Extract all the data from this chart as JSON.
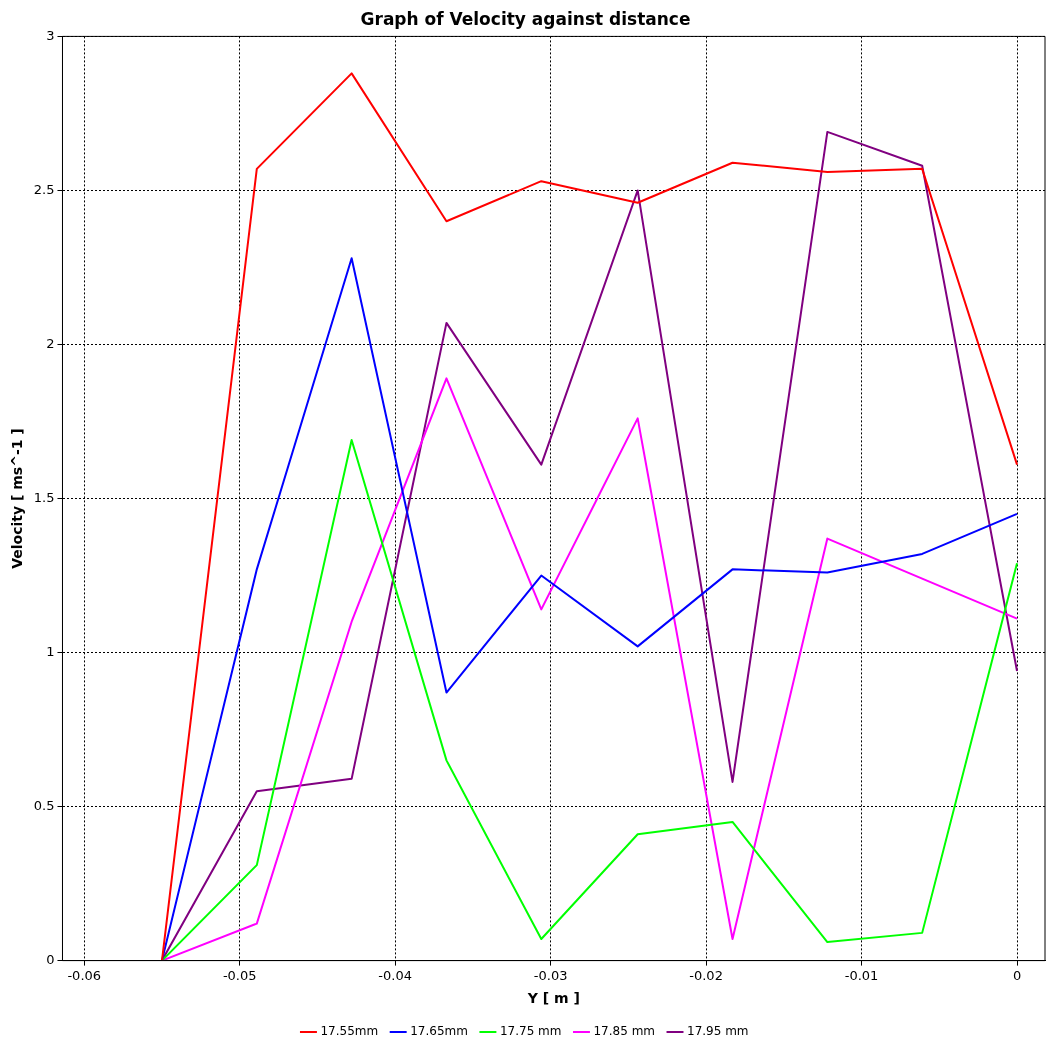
{
  "chart_data": {
    "type": "line",
    "title": "Graph of Velocity against distance",
    "xlabel": "Y [ m ]",
    "ylabel": "Velocity [ ms^-1 ]",
    "x": [
      -0.055,
      -0.0489,
      -0.0428,
      -0.0367,
      -0.0306,
      -0.0244,
      -0.0183,
      -0.0122,
      -0.0061,
      0
    ],
    "series": [
      {
        "name": "17.55mm",
        "color": "#ff0000",
        "values": [
          0,
          2.57,
          2.88,
          2.4,
          2.53,
          2.46,
          2.59,
          2.56,
          2.57,
          1.61
        ]
      },
      {
        "name": "17.65mm",
        "color": "#0000ff",
        "values": [
          0,
          1.27,
          2.28,
          0.87,
          1.25,
          1.02,
          1.27,
          1.26,
          1.32,
          1.45
        ]
      },
      {
        "name": "17.75 mm",
        "color": "#00ff00",
        "values": [
          0,
          0.31,
          1.69,
          0.65,
          0.07,
          0.41,
          0.45,
          0.06,
          0.09,
          1.29
        ]
      },
      {
        "name": "17.85 mm",
        "color": "#ff00ff",
        "values": [
          0,
          0.12,
          1.1,
          1.89,
          1.14,
          1.76,
          0.07,
          1.37,
          1.24,
          1.11
        ]
      },
      {
        "name": "17.95 mm",
        "color": "#800080",
        "values": [
          0,
          0.55,
          0.59,
          2.07,
          1.61,
          2.5,
          0.58,
          2.69,
          2.58,
          0.94
        ]
      }
    ],
    "xlim": [
      -0.0614,
      0.0018
    ],
    "xticks": [
      -0.06,
      -0.05,
      -0.04,
      -0.03,
      -0.02,
      -0.01,
      0
    ],
    "ylim": [
      0,
      3
    ],
    "yticks": [
      0,
      0.5,
      1,
      1.5,
      2,
      2.5,
      3
    ],
    "grid": true,
    "legend": "bottom",
    "marker": "none",
    "line_style": "solid"
  }
}
